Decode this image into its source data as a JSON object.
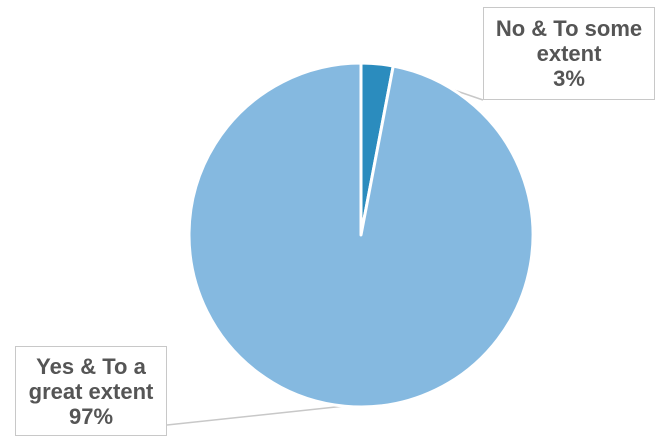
{
  "chart_data": {
    "type": "pie",
    "slices": [
      {
        "label_lines": [
          "No & To some",
          "extent"
        ],
        "percent_label": "3%",
        "value": 3,
        "color": "#2b8cbe"
      },
      {
        "label_lines": [
          "Yes & To a",
          "great extent"
        ],
        "percent_label": "97%",
        "value": 97,
        "color": "#85b9e0"
      }
    ],
    "start_angle": "12 o'clock",
    "direction": "clockwise",
    "slice_border_color": "#ffffff",
    "leader_line_color": "#c8c8c8"
  }
}
